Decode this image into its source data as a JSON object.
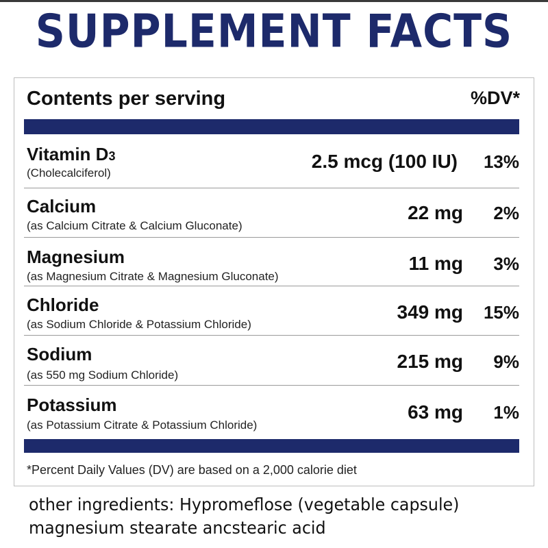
{
  "title": "SUPPLEMENT FACTS",
  "table": {
    "header_label": "Contents per serving",
    "header_dv": "%DV*",
    "rows": [
      {
        "name": "Vitamin D",
        "name_sub": "3",
        "source": "(Cholecalciferol)",
        "amount": "2.5 mcg (100 IU)",
        "dv": "13%"
      },
      {
        "name": "Calcium",
        "source": "(as Calcium Citrate & Calcium Gluconate)",
        "amount": "22 mg",
        "dv": "2%"
      },
      {
        "name": "Magnesium",
        "source": "(as Magnesium Citrate & Magnesium Gluconate)",
        "amount": "11 mg",
        "dv": "3%"
      },
      {
        "name": "Chloride",
        "source": "(as Sodium Chloride & Potassium Chloride)",
        "amount": "349 mg",
        "dv": "15%"
      },
      {
        "name": "Sodium",
        "source": "(as 550 mg Sodium Chloride)",
        "amount": "215 mg",
        "dv": "9%"
      },
      {
        "name": "Potassium",
        "source": "(as Potassium Citrate & Potassium Chloride)",
        "amount": "63 mg",
        "dv": "1%"
      }
    ],
    "footnote": "*Percent Daily Values (DV) are based on a 2,000 calorie diet"
  },
  "other_ingredients": {
    "label": "other ingredients:",
    "line1": "Hypromeflose (vegetable capsule)",
    "line2": "magnesium stearate ancstearic acid"
  },
  "colors": {
    "navy": "#1d2a6b"
  }
}
